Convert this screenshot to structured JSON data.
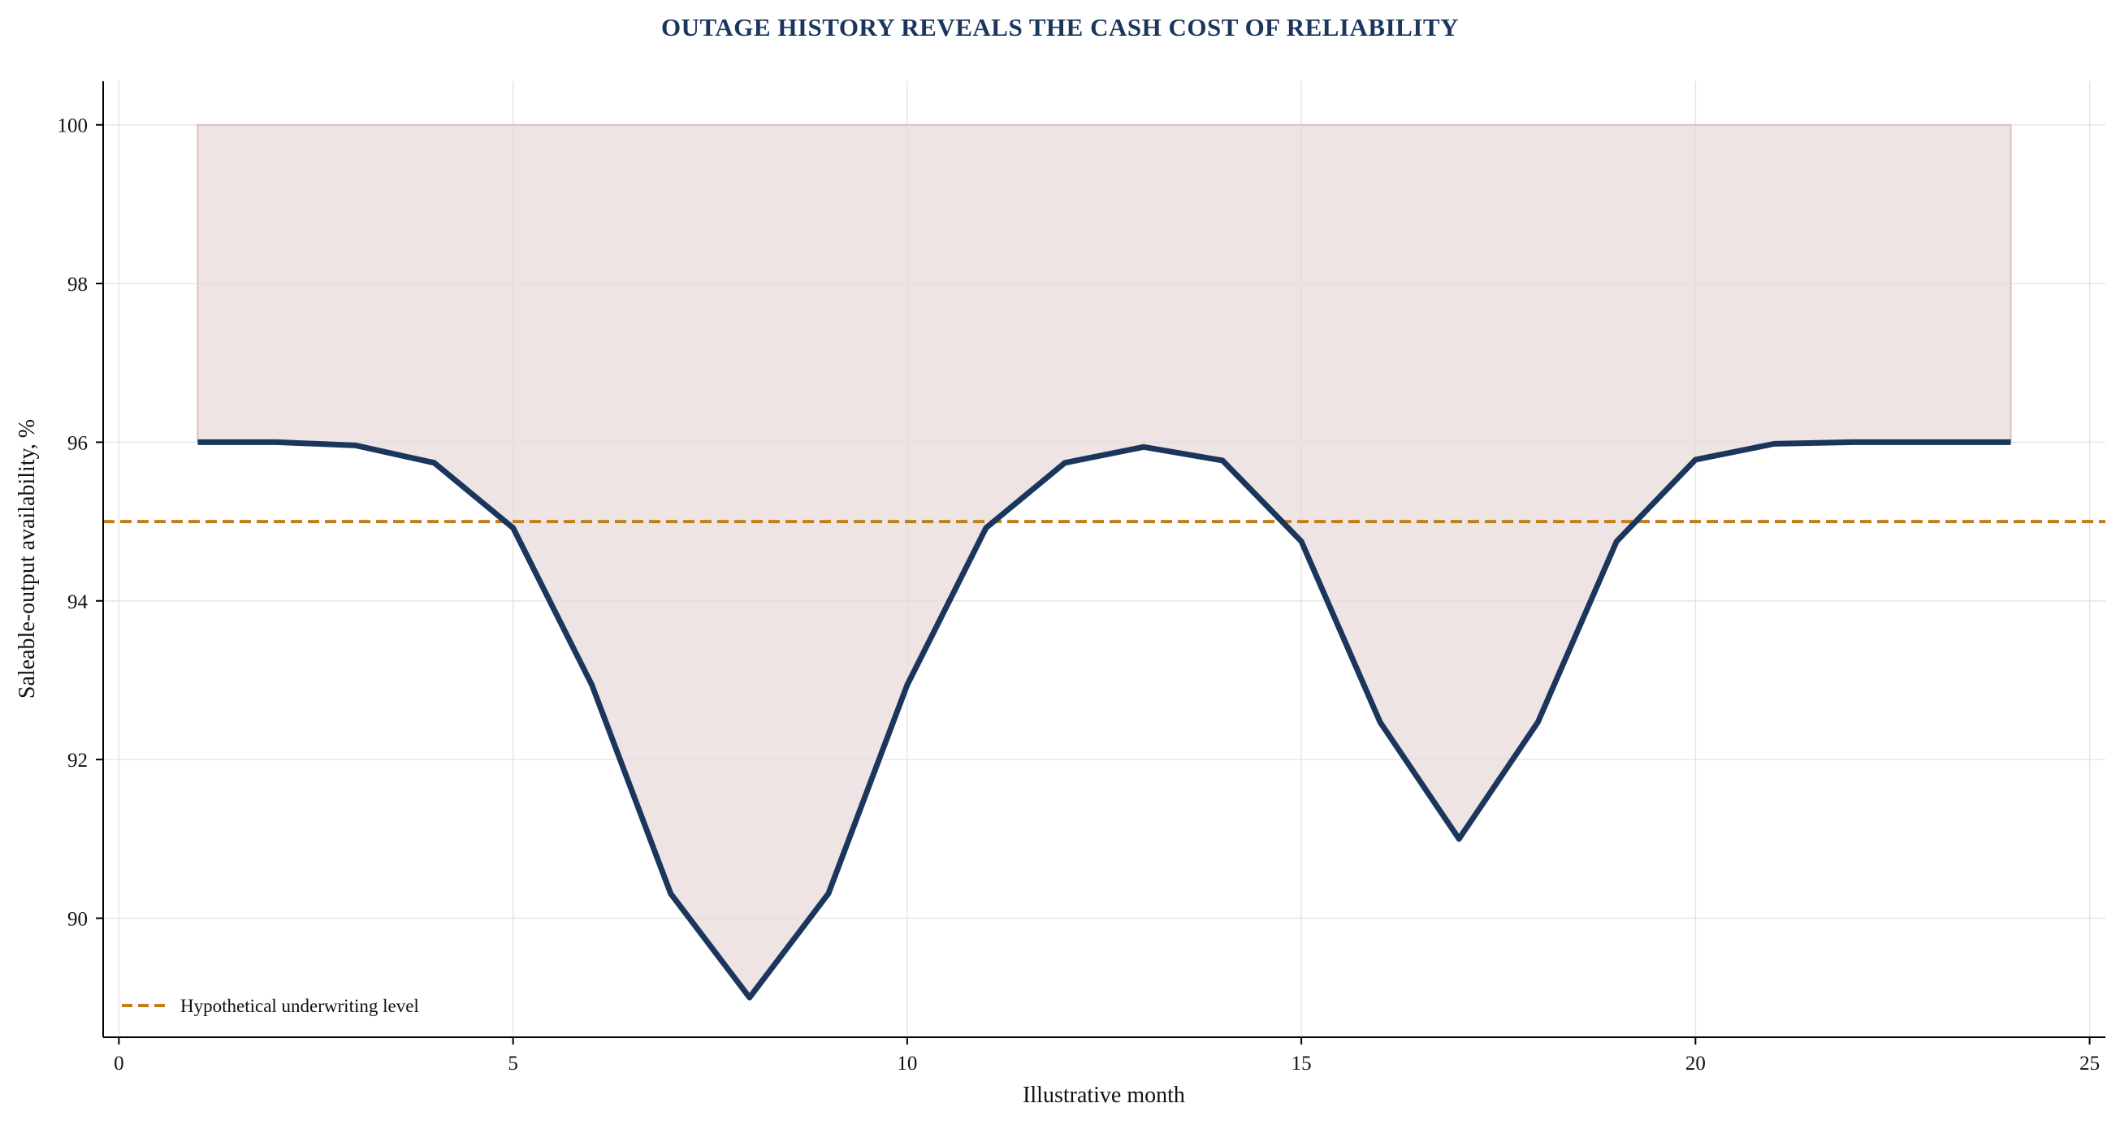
{
  "chart_data": {
    "type": "line",
    "title": "OUTAGE HISTORY REVEALS THE CASH COST OF RELIABILITY",
    "xlabel": "Illustrative month",
    "ylabel": "Saleable-output availability, %",
    "xlim": [
      -0.2,
      25.2
    ],
    "ylim": [
      88.5,
      100.55
    ],
    "xticks": [
      0,
      5,
      10,
      15,
      20,
      25
    ],
    "yticks": [
      90,
      92,
      94,
      96,
      98,
      100
    ],
    "grid": true,
    "legend_position": "bottom-left",
    "series": [
      {
        "name": "",
        "color": "#1b365d",
        "x": [
          1,
          2,
          3,
          4,
          5,
          6,
          7,
          8,
          9,
          10,
          11,
          12,
          13,
          14,
          15,
          16,
          17,
          18,
          19,
          20,
          21,
          22,
          23,
          24
        ],
        "y": [
          96.0,
          96.0,
          95.96,
          95.74,
          94.92,
          92.94,
          90.31,
          89.0,
          90.31,
          92.94,
          94.92,
          95.74,
          95.94,
          95.77,
          94.75,
          92.47,
          91.0,
          92.47,
          94.75,
          95.78,
          95.98,
          96.0,
          96.0,
          96.0
        ]
      }
    ],
    "fill_between": {
      "from_series": 0,
      "to_value": 100,
      "color": "#e8d8d9"
    },
    "reference_lines": [
      {
        "name": "Hypothetical underwriting level",
        "y": 95,
        "color": "#c07f1c",
        "style": "dashed"
      }
    ],
    "legend": [
      {
        "label": "Hypothetical underwriting level",
        "color": "#c07f1c",
        "style": "dashed"
      }
    ],
    "colors": {
      "title": "#1b365d",
      "axis": "#000000",
      "grid": "#e6e6e6"
    }
  }
}
